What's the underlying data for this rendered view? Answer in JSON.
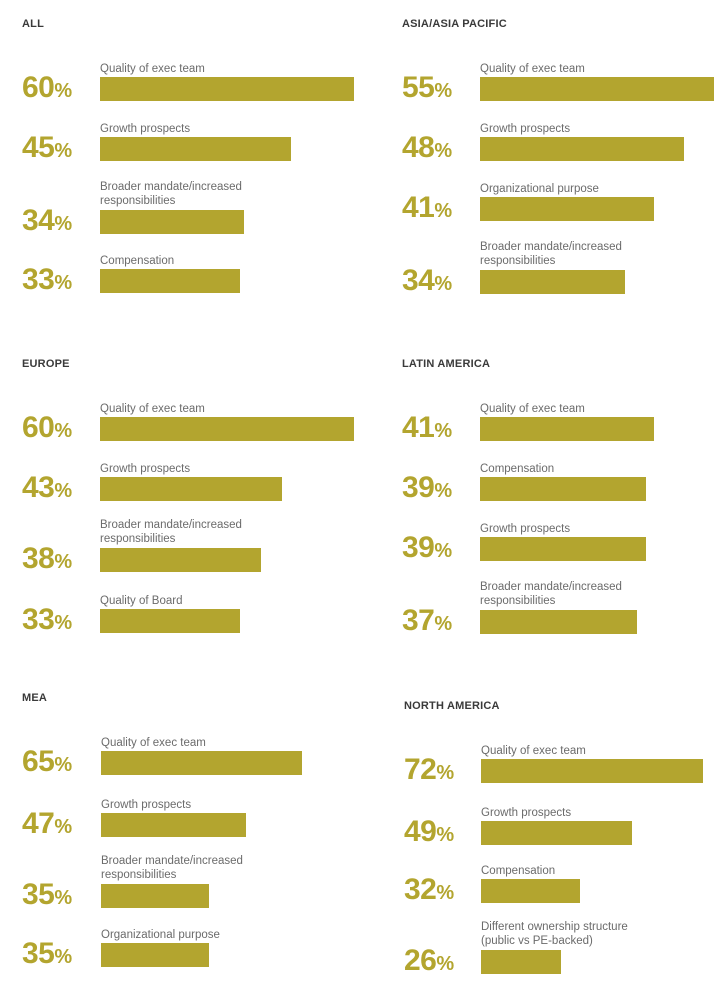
{
  "colors": {
    "bar": "#b3a52f",
    "percent": "#b3a52f",
    "title": "#3a3a3a",
    "label": "#6b6b6b"
  },
  "chart_data": [
    {
      "type": "bar",
      "title": "ALL",
      "unit": "%",
      "categories": [
        "Quality of exec team",
        "Growth prospects",
        "Broader mandate/increased responsibilities",
        "Compensation"
      ],
      "values": [
        60,
        45,
        34,
        33
      ]
    },
    {
      "type": "bar",
      "title": "ASIA/ASIA PACIFIC",
      "unit": "%",
      "categories": [
        "Quality of exec team",
        "Growth prospects",
        "Organizational purpose",
        "Broader mandate/increased responsibilities"
      ],
      "values": [
        55,
        48,
        41,
        34
      ]
    },
    {
      "type": "bar",
      "title": "EUROPE",
      "unit": "%",
      "categories": [
        "Quality of exec team",
        "Growth prospects",
        "Broader mandate/increased responsibilities",
        "Quality of Board"
      ],
      "values": [
        60,
        43,
        38,
        33
      ]
    },
    {
      "type": "bar",
      "title": "LATIN AMERICA",
      "unit": "%",
      "categories": [
        "Quality of exec team",
        "Compensation",
        "Growth prospects",
        "Broader mandate/increased responsibilities"
      ],
      "values": [
        41,
        39,
        39,
        37
      ]
    },
    {
      "type": "bar",
      "title": "MEA",
      "unit": "%",
      "categories": [
        "Quality of exec team",
        "Growth prospects",
        "Broader mandate/increased responsibilities",
        "Organizational purpose"
      ],
      "values": [
        65,
        47,
        35,
        35
      ]
    },
    {
      "type": "bar",
      "title": "NORTH AMERICA",
      "unit": "%",
      "categories": [
        "Quality of exec team",
        "Growth prospects",
        "Compensation",
        "Different ownership structure (public vs PE-backed)"
      ],
      "values": [
        72,
        49,
        32,
        26
      ]
    }
  ]
}
